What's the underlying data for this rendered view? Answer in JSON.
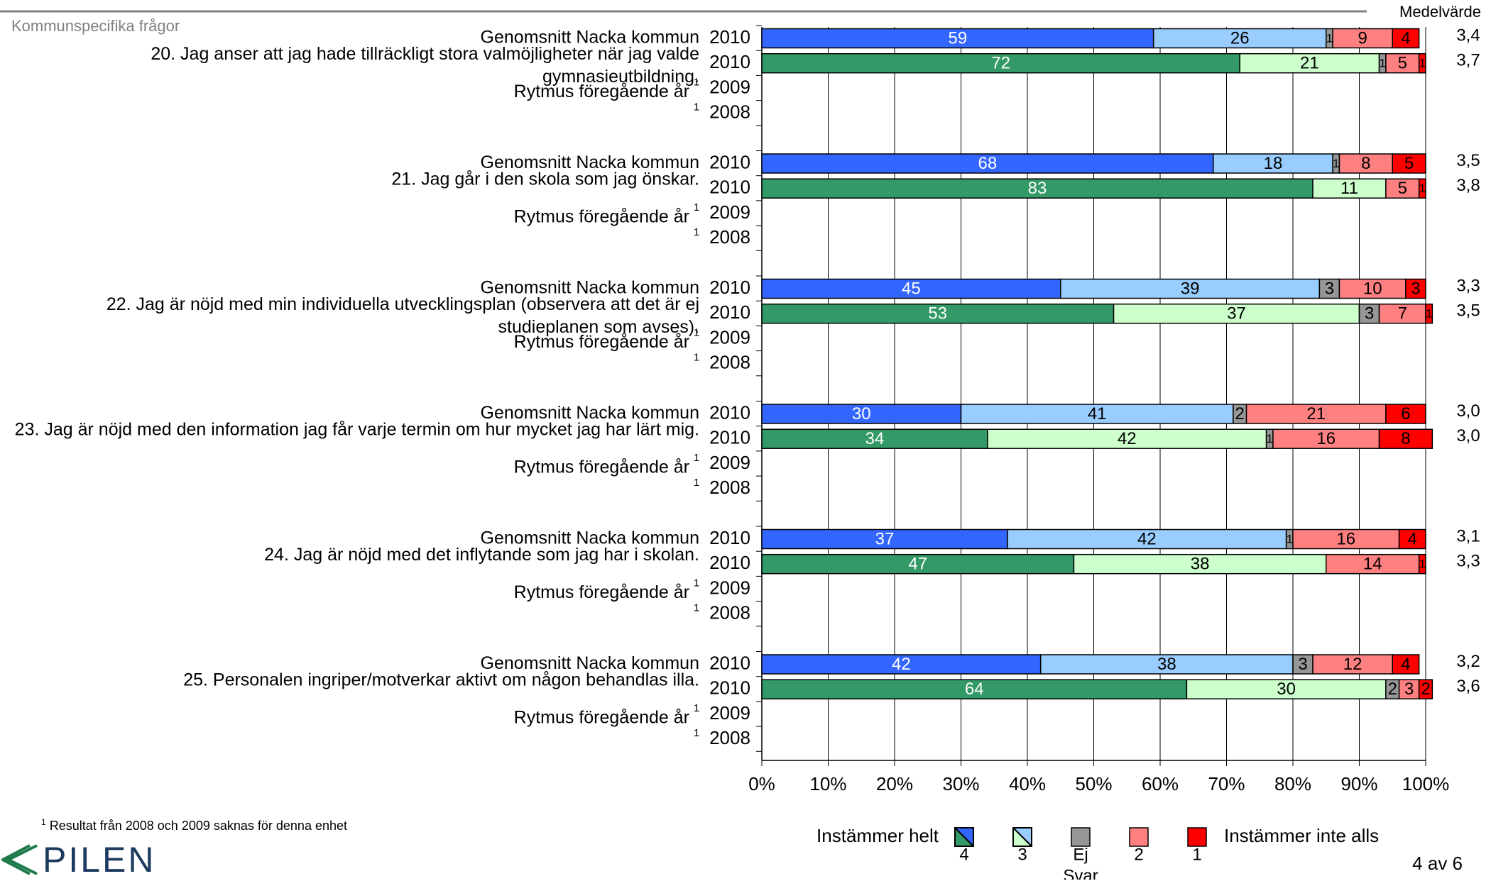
{
  "header": {
    "section_title": "Kommunspecifika frågor",
    "mean_label": "Medelvärde"
  },
  "chart_data": {
    "type": "bar",
    "stacked": true,
    "orientation": "horizontal",
    "x_range": [
      0,
      100
    ],
    "x_ticks": [
      "0%",
      "10%",
      "20%",
      "30%",
      "40%",
      "50%",
      "60%",
      "70%",
      "80%",
      "90%",
      "100%"
    ],
    "grid": true,
    "segment_order": [
      "4",
      "3",
      "Ej Svar",
      "2",
      "1"
    ],
    "row_labels": {
      "avg": "Genomsnitt Nacka kommun",
      "prev": "Rytmus föregående år",
      "footnote_mark": "1"
    },
    "questions": [
      {
        "question": "20.  Jag anser att jag hade tillräckligt stora valmöjligheter när jag valde gymnasieutbildning.",
        "rows": [
          {
            "row": "avg",
            "year": "2010",
            "values": [
              59,
              26,
              1,
              9,
              4
            ],
            "mean": "3,4"
          },
          {
            "row": "unit",
            "year": "2010",
            "values": [
              72,
              21,
              1,
              5,
              1
            ],
            "mean": "3,7"
          },
          {
            "row": "prev",
            "year": "2009"
          },
          {
            "row": "prev2",
            "year": "2008"
          }
        ]
      },
      {
        "question": "21.  Jag går i den skola som jag önskar.",
        "rows": [
          {
            "row": "avg",
            "year": "2010",
            "values": [
              68,
              18,
              1,
              8,
              5
            ],
            "mean": "3,5"
          },
          {
            "row": "unit",
            "year": "2010",
            "values": [
              83,
              11,
              0,
              5,
              1
            ],
            "mean": "3,8"
          },
          {
            "row": "prev",
            "year": "2009"
          },
          {
            "row": "prev2",
            "year": "2008"
          }
        ]
      },
      {
        "question": "22.  Jag är nöjd med min individuella utvecklingsplan (observera att det är ej studieplanen som avses).",
        "rows": [
          {
            "row": "avg",
            "year": "2010",
            "values": [
              45,
              39,
              3,
              10,
              3
            ],
            "mean": "3,3"
          },
          {
            "row": "unit",
            "year": "2010",
            "values": [
              53,
              37,
              3,
              7,
              1
            ],
            "mean": "3,5"
          },
          {
            "row": "prev",
            "year": "2009"
          },
          {
            "row": "prev2",
            "year": "2008"
          }
        ]
      },
      {
        "question": "23.  Jag är nöjd med den information jag får varje termin om hur mycket jag har lärt mig.",
        "rows": [
          {
            "row": "avg",
            "year": "2010",
            "values": [
              30,
              41,
              2,
              21,
              6
            ],
            "mean": "3,0"
          },
          {
            "row": "unit",
            "year": "2010",
            "values": [
              34,
              42,
              1,
              16,
              8
            ],
            "mean": "3,0"
          },
          {
            "row": "prev",
            "year": "2009"
          },
          {
            "row": "prev2",
            "year": "2008"
          }
        ]
      },
      {
        "question": "24.  Jag är nöjd med det inflytande som jag har i skolan.",
        "rows": [
          {
            "row": "avg",
            "year": "2010",
            "values": [
              37,
              42,
              1,
              16,
              4
            ],
            "mean": "3,1"
          },
          {
            "row": "unit",
            "year": "2010",
            "values": [
              47,
              38,
              0,
              14,
              1
            ],
            "mean": "3,3"
          },
          {
            "row": "prev",
            "year": "2009"
          },
          {
            "row": "prev2",
            "year": "2008"
          }
        ]
      },
      {
        "question": "25.  Personalen ingriper/motverkar aktivt om någon behandlas illa.",
        "rows": [
          {
            "row": "avg",
            "year": "2010",
            "values": [
              42,
              38,
              3,
              12,
              4
            ],
            "mean": "3,2"
          },
          {
            "row": "unit",
            "year": "2010",
            "values": [
              64,
              30,
              2,
              3,
              2
            ],
            "mean": "3,6"
          },
          {
            "row": "prev",
            "year": "2009"
          },
          {
            "row": "prev2",
            "year": "2008"
          }
        ]
      }
    ],
    "legend": {
      "left_text": "Instämmer helt",
      "right_text": "Instämmer inte alls",
      "items": [
        {
          "label": "4",
          "color_avg": "#3366ff",
          "color_unit": "#339966"
        },
        {
          "label": "3",
          "color_avg": "#99ccff",
          "color_unit": "#ccffcc"
        },
        {
          "label": "Ej Svar",
          "color_avg": "#969696",
          "color_unit": "#969696"
        },
        {
          "label": "2",
          "color_avg": "#ff8080",
          "color_unit": "#ff8080"
        },
        {
          "label": "1",
          "color_avg": "#ff0000",
          "color_unit": "#ff0000"
        }
      ]
    }
  },
  "footer": {
    "footnote_mark": "1",
    "footnote": "Resultat från 2008 och 2009 saknas för denna enhet",
    "logo_text": "PILEN",
    "page_number": "4 av 6"
  }
}
